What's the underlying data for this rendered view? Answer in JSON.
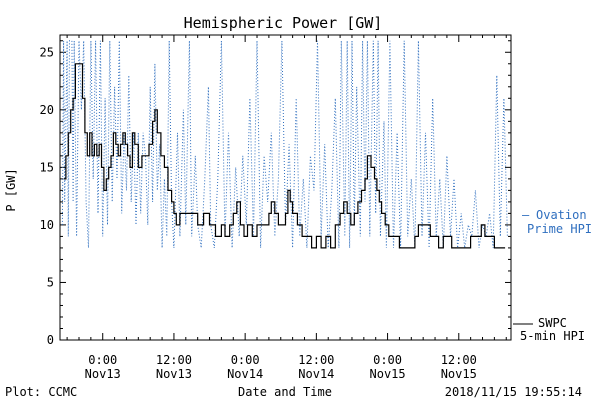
{
  "chart_data": {
    "type": "line",
    "title": "Hemispheric Power [GW]",
    "ylabel": "P [GW]",
    "xlabel": "Date and Time",
    "ylim": [
      0,
      26.5
    ],
    "yticks": [
      0,
      5,
      10,
      15,
      20,
      25
    ],
    "xlim_hours": [
      -3.6,
      34.4
    ],
    "xticks": [
      {
        "hour": 0,
        "line1": "0:00",
        "line2": "Nov13"
      },
      {
        "hour": 6,
        "line1": "12:00",
        "line2": "Nov13"
      },
      {
        "hour": 12,
        "line1": "0:00",
        "line2": "Nov14"
      },
      {
        "hour": 18,
        "line1": "12:00",
        "line2": "Nov14"
      },
      {
        "hour": 24,
        "line1": "0:00",
        "line2": "Nov15"
      },
      {
        "hour": 30,
        "line1": "12:00",
        "line2": "Nov15"
      }
    ],
    "series": [
      {
        "name": "SWPC 5-min HPI",
        "color": "#000000",
        "style": "solid",
        "points": [
          [
            -3.3,
            14
          ],
          [
            -3.1,
            16
          ],
          [
            -2.9,
            18
          ],
          [
            -2.7,
            20
          ],
          [
            -2.5,
            21
          ],
          [
            -2.3,
            24
          ],
          [
            -1.9,
            24
          ],
          [
            -1.7,
            21
          ],
          [
            -1.5,
            18
          ],
          [
            -1.3,
            16
          ],
          [
            -1.1,
            18
          ],
          [
            -0.9,
            16
          ],
          [
            -0.7,
            17
          ],
          [
            -0.5,
            16
          ],
          [
            -0.3,
            17
          ],
          [
            -0.1,
            15
          ],
          [
            0.1,
            13
          ],
          [
            0.3,
            14
          ],
          [
            0.5,
            15
          ],
          [
            0.7,
            16
          ],
          [
            0.9,
            18
          ],
          [
            1.1,
            17
          ],
          [
            1.3,
            16
          ],
          [
            1.5,
            17
          ],
          [
            1.7,
            18
          ],
          [
            1.9,
            17
          ],
          [
            2.1,
            16
          ],
          [
            2.3,
            15
          ],
          [
            2.5,
            18
          ],
          [
            2.7,
            17
          ],
          [
            3.0,
            15
          ],
          [
            3.3,
            16
          ],
          [
            3.6,
            16
          ],
          [
            3.9,
            17
          ],
          [
            4.2,
            19
          ],
          [
            4.4,
            20
          ],
          [
            4.6,
            18
          ],
          [
            4.9,
            16
          ],
          [
            5.2,
            15
          ],
          [
            5.5,
            13
          ],
          [
            5.8,
            12
          ],
          [
            6.0,
            11
          ],
          [
            6.2,
            10
          ],
          [
            6.5,
            11
          ],
          [
            7.0,
            11
          ],
          [
            7.5,
            11
          ],
          [
            8.0,
            10
          ],
          [
            8.5,
            11
          ],
          [
            9.0,
            10
          ],
          [
            9.5,
            9
          ],
          [
            10.0,
            10
          ],
          [
            10.3,
            9
          ],
          [
            10.7,
            10
          ],
          [
            11.0,
            11
          ],
          [
            11.3,
            12
          ],
          [
            11.6,
            10
          ],
          [
            11.9,
            9
          ],
          [
            12.2,
            10
          ],
          [
            12.6,
            9
          ],
          [
            13.0,
            10
          ],
          [
            13.5,
            10
          ],
          [
            14.0,
            11
          ],
          [
            14.2,
            12
          ],
          [
            14.5,
            11
          ],
          [
            14.8,
            10
          ],
          [
            15.1,
            10
          ],
          [
            15.4,
            11
          ],
          [
            15.6,
            13
          ],
          [
            15.8,
            12
          ],
          [
            16.0,
            11
          ],
          [
            16.4,
            10
          ],
          [
            16.8,
            9
          ],
          [
            17.3,
            9
          ],
          [
            17.6,
            8
          ],
          [
            18.0,
            9
          ],
          [
            18.4,
            8
          ],
          [
            18.8,
            9
          ],
          [
            19.2,
            8
          ],
          [
            19.6,
            10
          ],
          [
            20.0,
            11
          ],
          [
            20.3,
            12
          ],
          [
            20.6,
            11
          ],
          [
            20.9,
            10
          ],
          [
            21.2,
            11
          ],
          [
            21.5,
            12
          ],
          [
            21.8,
            13
          ],
          [
            22.1,
            14
          ],
          [
            22.3,
            16
          ],
          [
            22.6,
            15
          ],
          [
            22.9,
            14
          ],
          [
            23.1,
            13
          ],
          [
            23.3,
            12
          ],
          [
            23.5,
            11
          ],
          [
            23.8,
            10
          ],
          [
            24.1,
            9
          ],
          [
            24.5,
            9
          ],
          [
            25.0,
            8
          ],
          [
            25.8,
            8
          ],
          [
            26.3,
            9
          ],
          [
            26.6,
            10
          ],
          [
            27.2,
            10
          ],
          [
            27.6,
            9
          ],
          [
            28.0,
            9
          ],
          [
            28.3,
            8
          ],
          [
            28.7,
            9
          ],
          [
            29.0,
            9
          ],
          [
            29.4,
            8
          ],
          [
            30.5,
            8
          ],
          [
            31.0,
            9
          ],
          [
            31.5,
            9
          ],
          [
            31.9,
            10
          ],
          [
            32.2,
            9
          ],
          [
            32.6,
            9
          ],
          [
            33.0,
            8
          ],
          [
            33.5,
            8
          ],
          [
            33.9,
            8
          ]
        ]
      },
      {
        "name": "Ovation Prime HPI",
        "color": "#2f6fbf",
        "style": "dotted",
        "points": [
          [
            -3.4,
            10
          ],
          [
            -3.3,
            26
          ],
          [
            -3.2,
            12
          ],
          [
            -3.0,
            26
          ],
          [
            -2.9,
            9
          ],
          [
            -2.8,
            26
          ],
          [
            -2.6,
            26
          ],
          [
            -2.5,
            12
          ],
          [
            -2.4,
            26
          ],
          [
            -2.2,
            9
          ],
          [
            -2.0,
            26
          ],
          [
            -1.8,
            20
          ],
          [
            -1.6,
            26
          ],
          [
            -1.4,
            12
          ],
          [
            -1.2,
            8
          ],
          [
            -1.0,
            26
          ],
          [
            -0.8,
            14
          ],
          [
            -0.6,
            26
          ],
          [
            -0.4,
            11
          ],
          [
            -0.2,
            26
          ],
          [
            0.0,
            9
          ],
          [
            0.2,
            21
          ],
          [
            0.4,
            10
          ],
          [
            0.6,
            26
          ],
          [
            0.8,
            12
          ],
          [
            1.0,
            22
          ],
          [
            1.2,
            14
          ],
          [
            1.4,
            26
          ],
          [
            1.6,
            11
          ],
          [
            1.8,
            18
          ],
          [
            2.0,
            13
          ],
          [
            2.2,
            23
          ],
          [
            2.4,
            12
          ],
          [
            2.6,
            18
          ],
          [
            2.8,
            10
          ],
          [
            3.0,
            18
          ],
          [
            3.2,
            11
          ],
          [
            3.4,
            18
          ],
          [
            3.6,
            16
          ],
          [
            3.8,
            10
          ],
          [
            4.0,
            22
          ],
          [
            4.2,
            12
          ],
          [
            4.4,
            24
          ],
          [
            4.6,
            13
          ],
          [
            4.8,
            17
          ],
          [
            5.0,
            8
          ],
          [
            5.2,
            14
          ],
          [
            5.4,
            9
          ],
          [
            5.6,
            26
          ],
          [
            5.8,
            12
          ],
          [
            6.0,
            8
          ],
          [
            6.3,
            18
          ],
          [
            6.5,
            9
          ],
          [
            6.8,
            20
          ],
          [
            7.0,
            10
          ],
          [
            7.3,
            26
          ],
          [
            7.5,
            9
          ],
          [
            7.8,
            16
          ],
          [
            8.0,
            10
          ],
          [
            8.3,
            8
          ],
          [
            8.6,
            14
          ],
          [
            8.9,
            22
          ],
          [
            9.1,
            10
          ],
          [
            9.4,
            8
          ],
          [
            9.7,
            14
          ],
          [
            10.0,
            26
          ],
          [
            10.3,
            9
          ],
          [
            10.6,
            18
          ],
          [
            10.9,
            8
          ],
          [
            11.2,
            15
          ],
          [
            11.5,
            9
          ],
          [
            11.8,
            16
          ],
          [
            12.1,
            10
          ],
          [
            12.4,
            21
          ],
          [
            12.7,
            9
          ],
          [
            13.0,
            26
          ],
          [
            13.3,
            8
          ],
          [
            13.6,
            16
          ],
          [
            13.9,
            12
          ],
          [
            14.2,
            18
          ],
          [
            14.5,
            9
          ],
          [
            14.8,
            14
          ],
          [
            15.1,
            26
          ],
          [
            15.4,
            10
          ],
          [
            15.7,
            17
          ],
          [
            16.0,
            8
          ],
          [
            16.3,
            21
          ],
          [
            16.6,
            9
          ],
          [
            16.9,
            14
          ],
          [
            17.2,
            8
          ],
          [
            17.5,
            16
          ],
          [
            17.8,
            13
          ],
          [
            18.1,
            26
          ],
          [
            18.4,
            9
          ],
          [
            18.7,
            17
          ],
          [
            19.0,
            8
          ],
          [
            19.3,
            13
          ],
          [
            19.6,
            21
          ],
          [
            19.9,
            8
          ],
          [
            20.1,
            26
          ],
          [
            20.4,
            9
          ],
          [
            20.6,
            26
          ],
          [
            20.8,
            8
          ],
          [
            21.0,
            26
          ],
          [
            21.2,
            10
          ],
          [
            21.4,
            22
          ],
          [
            21.7,
            9
          ],
          [
            21.9,
            26
          ],
          [
            22.1,
            12
          ],
          [
            22.3,
            26
          ],
          [
            22.5,
            9
          ],
          [
            22.8,
            26
          ],
          [
            23.0,
            11
          ],
          [
            23.2,
            26
          ],
          [
            23.4,
            9
          ],
          [
            23.7,
            19
          ],
          [
            23.9,
            8
          ],
          [
            24.2,
            26
          ],
          [
            24.5,
            8
          ],
          [
            24.8,
            18
          ],
          [
            25.1,
            8
          ],
          [
            25.4,
            26
          ],
          [
            25.7,
            9
          ],
          [
            26.0,
            14
          ],
          [
            26.3,
            8
          ],
          [
            26.6,
            26
          ],
          [
            26.9,
            9
          ],
          [
            27.2,
            18
          ],
          [
            27.5,
            8
          ],
          [
            27.8,
            21
          ],
          [
            28.1,
            9
          ],
          [
            28.4,
            14
          ],
          [
            28.7,
            8
          ],
          [
            29.0,
            16
          ],
          [
            29.3,
            9
          ],
          [
            29.6,
            14
          ],
          [
            29.9,
            8
          ],
          [
            30.2,
            11
          ],
          [
            30.5,
            8
          ],
          [
            30.8,
            10
          ],
          [
            31.1,
            9
          ],
          [
            31.4,
            13
          ],
          [
            31.7,
            8
          ],
          [
            32.0,
            10
          ],
          [
            32.3,
            9
          ],
          [
            32.6,
            11
          ],
          [
            32.9,
            8
          ],
          [
            33.2,
            23
          ],
          [
            33.5,
            9
          ],
          [
            33.8,
            21
          ],
          [
            34.1,
            9
          ]
        ]
      }
    ]
  },
  "legend": {
    "ovation": {
      "dash": "–",
      "line1": "Ovation",
      "line2": "Prime HPI"
    },
    "swpc": {
      "line1": "SWPC",
      "line2": "5-min HPI"
    }
  },
  "footer": {
    "plot_source": "Plot: CCMC",
    "xlabel": "Date and Time",
    "timestamp": "2018/11/15 19:55:14"
  }
}
